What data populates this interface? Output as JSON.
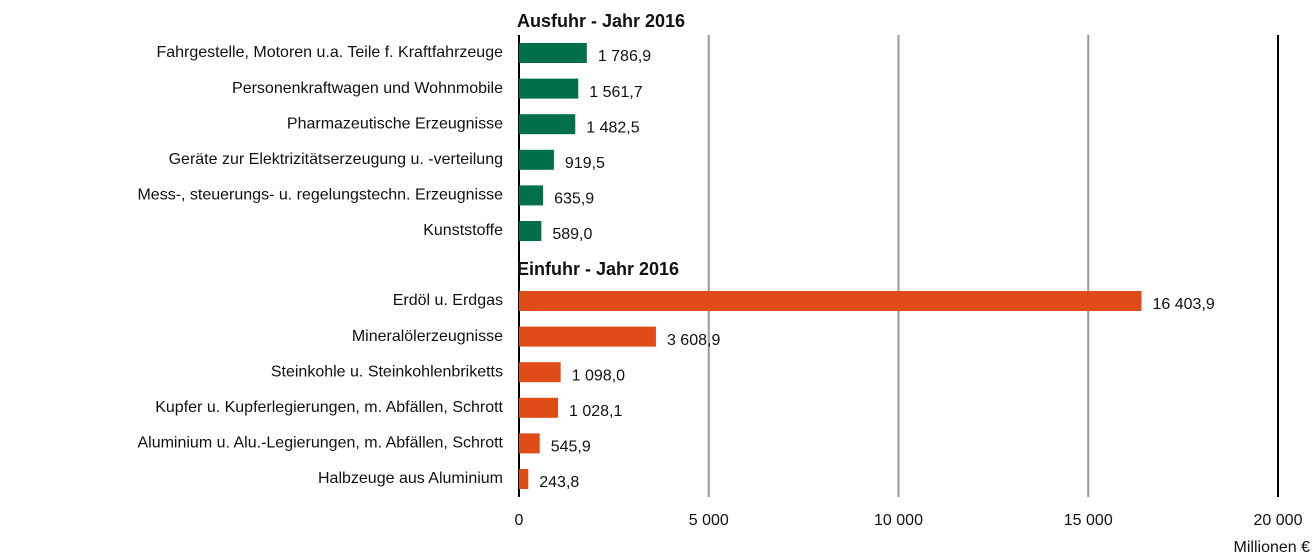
{
  "chart_data": {
    "type": "bar",
    "orientation": "horizontal",
    "groups": [
      {
        "title": "Ausfuhr - Jahr 2016",
        "color": "#006f4c",
        "categories": [
          "Fahrgestelle, Motoren u.a. Teile f. Kraftfahrzeuge",
          "Personenkraftwagen und Wohnmobile",
          "Pharmazeutische Erzeugnisse",
          "Geräte zur Elektrizitätserzeugung u. -verteilung",
          "Mess-, steuerungs- u. regelungstechn. Erzeugnisse",
          "Kunststoffe"
        ],
        "values": [
          1786.9,
          1561.7,
          1482.5,
          919.5,
          635.9,
          589.0
        ],
        "value_labels": [
          "1 786,9",
          "1 561,7",
          "1 482,5",
          "919,5",
          "635,9",
          "589,0"
        ]
      },
      {
        "title": "Einfuhr - Jahr 2016",
        "color": "#e04c17",
        "categories": [
          "Erdöl u. Erdgas",
          "Mineralölerzeugnisse",
          "Steinkohle u. Steinkohlenbriketts",
          "Kupfer u. Kupferlegierungen, m. Abfällen, Schrott",
          "Aluminium u. Alu.-Legierungen, m. Abfällen, Schrott",
          "Halbzeuge aus Aluminium"
        ],
        "values": [
          16403.9,
          3608.9,
          1098.0,
          1028.1,
          545.9,
          243.8
        ],
        "value_labels": [
          "16 403,9",
          "3 608,9",
          "1 098,0",
          "1 028,1",
          "545,9",
          "243,8"
        ]
      }
    ],
    "xlim": [
      0,
      20000
    ],
    "xticks": [
      0,
      {
        "value": 5000,
        "label": "5 000"
      },
      {
        "value": 10000,
        "label": "10 000"
      },
      {
        "value": 15000,
        "label": "15 000"
      },
      {
        "value": 20000,
        "label": "20 000"
      }
    ],
    "x_label": "Millionen €",
    "grid": true
  }
}
